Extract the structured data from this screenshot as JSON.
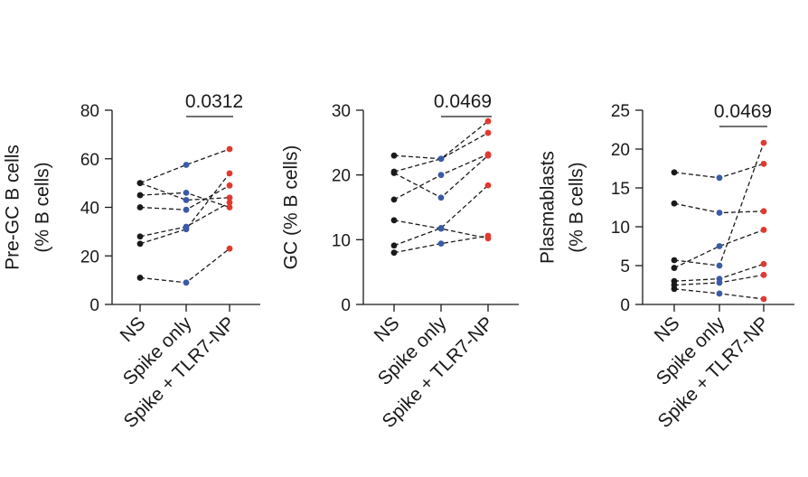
{
  "colors": {
    "ns": "#1a1a1a",
    "spike_only": "#3b5aa6",
    "spike_tlr7": "#e03a2f",
    "axis": "#1a1a1a"
  },
  "chart_data": [
    {
      "type": "line",
      "ylabel_lines": [
        "Pre-GC B cells",
        "(% B cells)"
      ],
      "categories": [
        "NS",
        "Spike only",
        "Spike + TLR7-NP"
      ],
      "ylim": [
        0,
        80
      ],
      "yticks": [
        0,
        20,
        40,
        60,
        80
      ],
      "pvalue": "0.0312",
      "pvalue_between": [
        1,
        2
      ],
      "series": [
        {
          "values": [
            50,
            43,
            44
          ]
        },
        {
          "values": [
            45,
            46,
            40
          ]
        },
        {
          "values": [
            40,
            39,
            49
          ]
        },
        {
          "values": [
            28,
            32,
            42
          ]
        },
        {
          "values": [
            25,
            31,
            54
          ]
        },
        {
          "values": [
            11,
            9,
            23
          ]
        },
        {
          "values": [
            50,
            57.5,
            64
          ]
        }
      ]
    },
    {
      "type": "line",
      "ylabel_lines": [
        "GC (%  B cells)"
      ],
      "categories": [
        "NS",
        "Spike only",
        "Spike + TLR7-NP"
      ],
      "ylim": [
        0,
        30
      ],
      "yticks": [
        0,
        10,
        20,
        30
      ],
      "pvalue": "0.0469",
      "pvalue_between": [
        1,
        2
      ],
      "series": [
        {
          "values": [
            23,
            22.5,
            28.3
          ]
        },
        {
          "values": [
            20.5,
            22.5,
            26.5
          ]
        },
        {
          "values": [
            20.3,
            16.5,
            23
          ]
        },
        {
          "values": [
            16.2,
            20,
            23.2
          ]
        },
        {
          "values": [
            13,
            11.7,
            10.2
          ]
        },
        {
          "values": [
            9.1,
            11.8,
            18.4
          ]
        },
        {
          "values": [
            8,
            9.4,
            10.6
          ]
        }
      ]
    },
    {
      "type": "line",
      "ylabel_lines": [
        "Plasmablasts",
        "(% B cells)"
      ],
      "categories": [
        "NS",
        "Spike only",
        "Spike + TLR7-NP"
      ],
      "ylim": [
        0,
        25
      ],
      "yticks": [
        0,
        5,
        10,
        15,
        20,
        25
      ],
      "pvalue": "0.0469",
      "pvalue_between": [
        1,
        2
      ],
      "series": [
        {
          "values": [
            17,
            16.3,
            18.1
          ]
        },
        {
          "values": [
            13,
            11.8,
            12
          ]
        },
        {
          "values": [
            5.7,
            5,
            20.8
          ]
        },
        {
          "values": [
            4.7,
            7.5,
            9.6
          ]
        },
        {
          "values": [
            3,
            3.3,
            5.2
          ]
        },
        {
          "values": [
            2.5,
            2.8,
            3.8
          ]
        },
        {
          "values": [
            2,
            1.4,
            0.7
          ]
        }
      ]
    }
  ]
}
